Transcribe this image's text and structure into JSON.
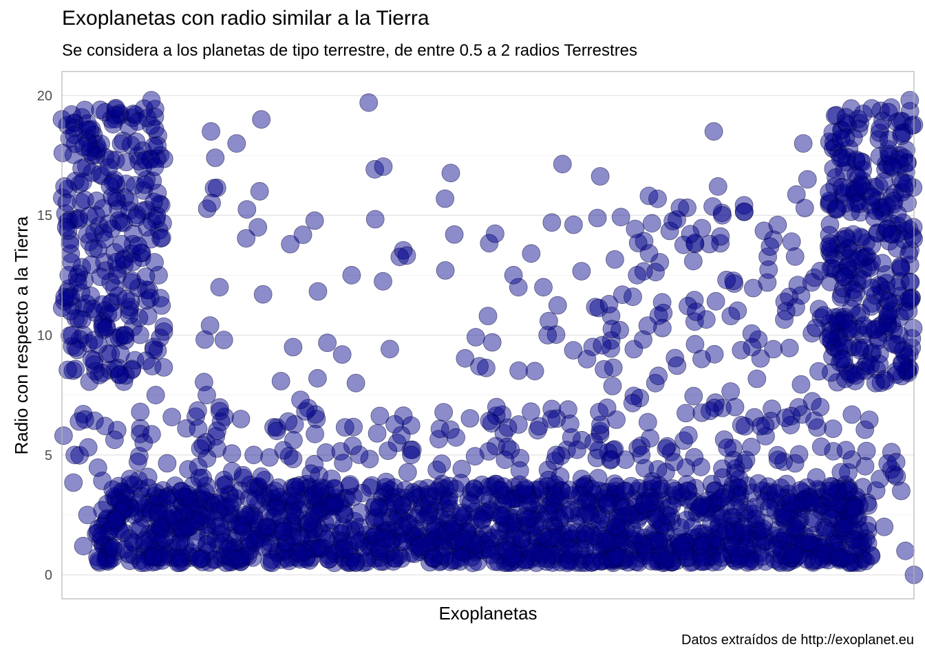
{
  "chart_data": {
    "type": "scatter",
    "title": "Exoplanetas con radio similar a la Tierra",
    "subtitle": "Se considera a los planetas de tipo terrestre, de entre 0.5 a 2 radios Terrestres",
    "xlabel": "Exoplanetas",
    "ylabel": "Radio con respecto a la Tierra",
    "caption": "Datos extraídos de http://exoplanet.eu",
    "ylim": [
      -1,
      21
    ],
    "yticks": [
      0,
      5,
      10,
      15,
      20
    ],
    "xticks": [],
    "grid": true,
    "legend": "none",
    "point_color": "#00008B",
    "point_opacity": 0.45,
    "description_note": "Dense point cloud; main cluster between 0.5 and 4 across all planets, sparser points up to 20 at the edges",
    "x_range": [
      0,
      1000
    ],
    "series": [
      {
        "values_sample": [
          [
            0,
            19
          ],
          [
            1,
            17.6
          ],
          [
            3,
            16.2
          ],
          [
            5,
            14.5
          ],
          [
            8,
            12.5
          ],
          [
            10,
            11
          ],
          [
            12,
            10
          ],
          [
            15,
            5
          ],
          [
            20,
            6.4
          ],
          [
            25,
            1.2
          ],
          [
            30,
            2.5
          ],
          [
            35,
            9
          ],
          [
            40,
            15
          ],
          [
            45,
            19.4
          ],
          [
            50,
            14
          ],
          [
            55,
            17
          ],
          [
            60,
            18.8
          ],
          [
            65,
            12.5
          ],
          [
            70,
            13.8
          ],
          [
            75,
            11.5
          ],
          [
            80,
            4
          ],
          [
            85,
            2.5
          ],
          [
            90,
            3
          ],
          [
            95,
            17
          ],
          [
            100,
            14.5
          ],
          [
            105,
            19.8
          ],
          [
            110,
            7.5
          ],
          [
            115,
            2
          ],
          [
            120,
            1.5
          ],
          [
            130,
            2.5
          ],
          [
            140,
            3.5
          ],
          [
            150,
            2
          ],
          [
            160,
            4.5
          ],
          [
            170,
            7.5
          ],
          [
            175,
            18.5
          ],
          [
            180,
            17.4
          ],
          [
            185,
            12
          ],
          [
            190,
            9.8
          ],
          [
            200,
            3
          ],
          [
            205,
            18
          ],
          [
            210,
            6.5
          ],
          [
            215,
            2.5
          ],
          [
            220,
            1.5
          ],
          [
            225,
            5
          ],
          [
            230,
            14.5
          ],
          [
            232,
            16
          ],
          [
            234,
            19
          ],
          [
            236,
            11.7
          ],
          [
            240,
            2
          ],
          [
            250,
            3.5
          ],
          [
            260,
            1.8
          ],
          [
            270,
            2.6
          ],
          [
            280,
            7.3
          ],
          [
            290,
            2.2
          ],
          [
            300,
            8.2
          ],
          [
            310,
            1.5
          ],
          [
            320,
            3
          ],
          [
            330,
            2
          ],
          [
            340,
            12.5
          ],
          [
            345,
            8
          ],
          [
            350,
            2.6
          ],
          [
            360,
            19.7
          ],
          [
            370,
            5.9
          ],
          [
            380,
            1.5
          ],
          [
            390,
            3
          ],
          [
            400,
            2
          ],
          [
            410,
            5
          ],
          [
            420,
            1.2
          ],
          [
            430,
            2.5
          ],
          [
            440,
            3.5
          ],
          [
            450,
            12.7
          ],
          [
            460,
            2
          ],
          [
            470,
            1.5
          ],
          [
            480,
            3
          ],
          [
            490,
            8.7
          ],
          [
            500,
            10.8
          ],
          [
            505,
            9.7
          ],
          [
            510,
            7
          ],
          [
            515,
            2.5
          ],
          [
            520,
            4.8
          ],
          [
            530,
            12.5
          ],
          [
            540,
            1.5
          ],
          [
            550,
            3
          ],
          [
            555,
            8.5
          ],
          [
            560,
            6.2
          ],
          [
            565,
            12
          ],
          [
            570,
            10
          ],
          [
            575,
            14.7
          ],
          [
            580,
            5
          ],
          [
            590,
            2.5
          ],
          [
            600,
            1
          ],
          [
            610,
            4
          ],
          [
            620,
            2.5
          ],
          [
            630,
            5.2
          ],
          [
            640,
            3
          ],
          [
            650,
            2
          ],
          [
            660,
            3.5
          ],
          [
            670,
            11.6
          ],
          [
            675,
            12.5
          ],
          [
            680,
            5
          ],
          [
            690,
            3
          ],
          [
            700,
            8.3
          ],
          [
            710,
            2.5
          ],
          [
            720,
            3.5
          ],
          [
            730,
            1
          ],
          [
            740,
            2
          ],
          [
            750,
            4.5
          ],
          [
            760,
            13.8
          ],
          [
            765,
            18.5
          ],
          [
            770,
            16.2
          ],
          [
            775,
            15
          ],
          [
            780,
            12.3
          ],
          [
            785,
            10.8
          ],
          [
            790,
            7
          ],
          [
            795,
            4
          ],
          [
            800,
            2
          ],
          [
            810,
            9.5
          ],
          [
            820,
            6.2
          ],
          [
            830,
            2.8
          ],
          [
            840,
            14.6
          ],
          [
            850,
            11
          ],
          [
            855,
            3
          ],
          [
            860,
            2
          ],
          [
            870,
            18
          ],
          [
            875,
            16.5
          ],
          [
            880,
            12.2
          ],
          [
            885,
            10.3
          ],
          [
            890,
            7
          ],
          [
            900,
            3.5
          ],
          [
            910,
            15.3
          ],
          [
            915,
            9
          ],
          [
            920,
            5.2
          ],
          [
            930,
            2.5
          ],
          [
            940,
            16.9
          ],
          [
            950,
            11.2
          ],
          [
            955,
            8
          ],
          [
            960,
            4
          ],
          [
            965,
            2
          ],
          [
            970,
            19.3
          ],
          [
            975,
            17
          ],
          [
            980,
            12
          ],
          [
            985,
            3.5
          ],
          [
            990,
            1
          ],
          [
            995,
            19.8
          ],
          [
            1000,
            0
          ]
        ]
      }
    ]
  }
}
